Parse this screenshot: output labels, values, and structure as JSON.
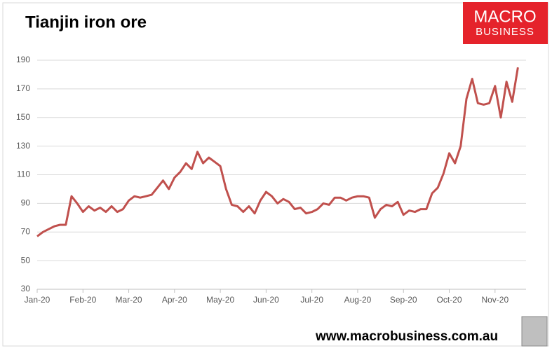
{
  "chart_data": {
    "type": "line",
    "title": "Tianjin iron ore",
    "logo": [
      "MACRO",
      "BUSINESS"
    ],
    "footer": "www.macrobusiness.com.au",
    "categories": [
      "Jan-20",
      null,
      null,
      null,
      null,
      null,
      null,
      null,
      "Feb-20",
      null,
      null,
      null,
      null,
      null,
      null,
      null,
      "Mar-20",
      null,
      null,
      null,
      null,
      null,
      null,
      null,
      "Apr-20",
      null,
      null,
      null,
      null,
      null,
      null,
      null,
      "May-20",
      null,
      null,
      null,
      null,
      null,
      null,
      null,
      "Jun-20",
      null,
      null,
      null,
      null,
      null,
      null,
      null,
      "Jul-20",
      null,
      null,
      null,
      null,
      null,
      null,
      null,
      "Aug-20",
      null,
      null,
      null,
      null,
      null,
      null,
      null,
      "Sep-20",
      null,
      null,
      null,
      null,
      null,
      null,
      null,
      "Oct-20",
      null,
      null,
      null,
      null,
      null,
      null,
      null,
      "Nov-20",
      null,
      null,
      null,
      null
    ],
    "series": [
      {
        "name": "Tianjin iron ore",
        "color": "#c0504d",
        "values": [
          67,
          70,
          72,
          74,
          75,
          75,
          95,
          90,
          84,
          88,
          85,
          87,
          84,
          88,
          84,
          86,
          92,
          95,
          94,
          95,
          96,
          101,
          106,
          100,
          108,
          112,
          118,
          114,
          126,
          118,
          122,
          119,
          116,
          100,
          89,
          88,
          84,
          88,
          83,
          92,
          98,
          95,
          90,
          93,
          91,
          86,
          87,
          83,
          84,
          86,
          90,
          89,
          94,
          94,
          92,
          94,
          95,
          95,
          94,
          80,
          86,
          89,
          88,
          91,
          82,
          85,
          84,
          86,
          86,
          97,
          101,
          111,
          125,
          118,
          130,
          163,
          177,
          160,
          159,
          160,
          172,
          150,
          175,
          161,
          185
        ]
      }
    ],
    "ylim": [
      30,
      190
    ],
    "yticks": [
      30,
      50,
      70,
      90,
      110,
      130,
      150,
      170,
      190
    ],
    "grid": true
  }
}
